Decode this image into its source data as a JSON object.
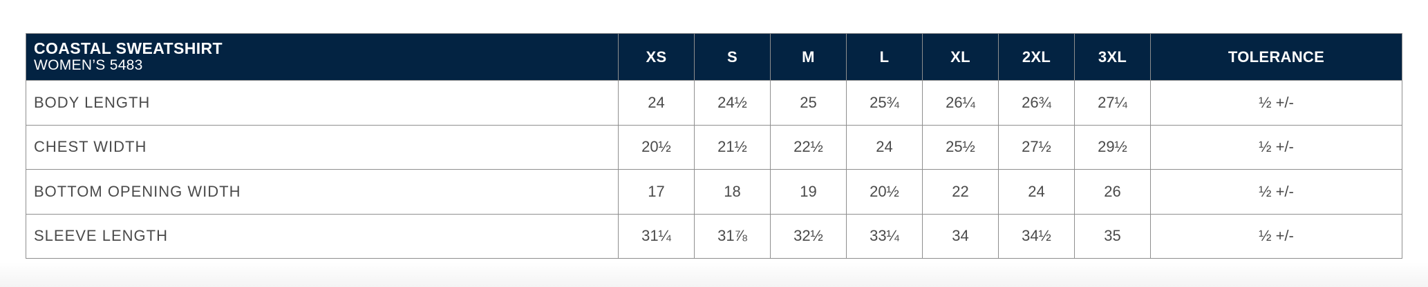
{
  "product": {
    "title": "COASTAL SWEATSHIRT",
    "subtitle": "WOMEN’S 5483"
  },
  "columns": [
    "XS",
    "S",
    "M",
    "L",
    "XL",
    "2XL",
    "3XL",
    "TOLERANCE"
  ],
  "rows": [
    {
      "label": "BODY LENGTH",
      "values": [
        "24",
        "24½",
        "25",
        "25¾",
        "26¼",
        "26¾",
        "27¼",
        "½ +/-"
      ]
    },
    {
      "label": "CHEST WIDTH",
      "values": [
        "20½",
        "21½",
        "22½",
        "24",
        "25½",
        "27½",
        "29½",
        "½ +/-"
      ]
    },
    {
      "label": "BOTTOM OPENING WIDTH",
      "values": [
        "17",
        "18",
        "19",
        "20½",
        "22",
        "24",
        "26",
        "½ +/-"
      ]
    },
    {
      "label": "SLEEVE LENGTH",
      "values": [
        "31¼",
        "31⅞",
        "32½",
        "33¼",
        "34",
        "34½",
        "35",
        "½ +/-"
      ]
    }
  ],
  "colors": {
    "header_background": "#032342",
    "header_text": "#ffffff",
    "border": "#8e8e8e",
    "body_text": "#4a4a4a"
  }
}
